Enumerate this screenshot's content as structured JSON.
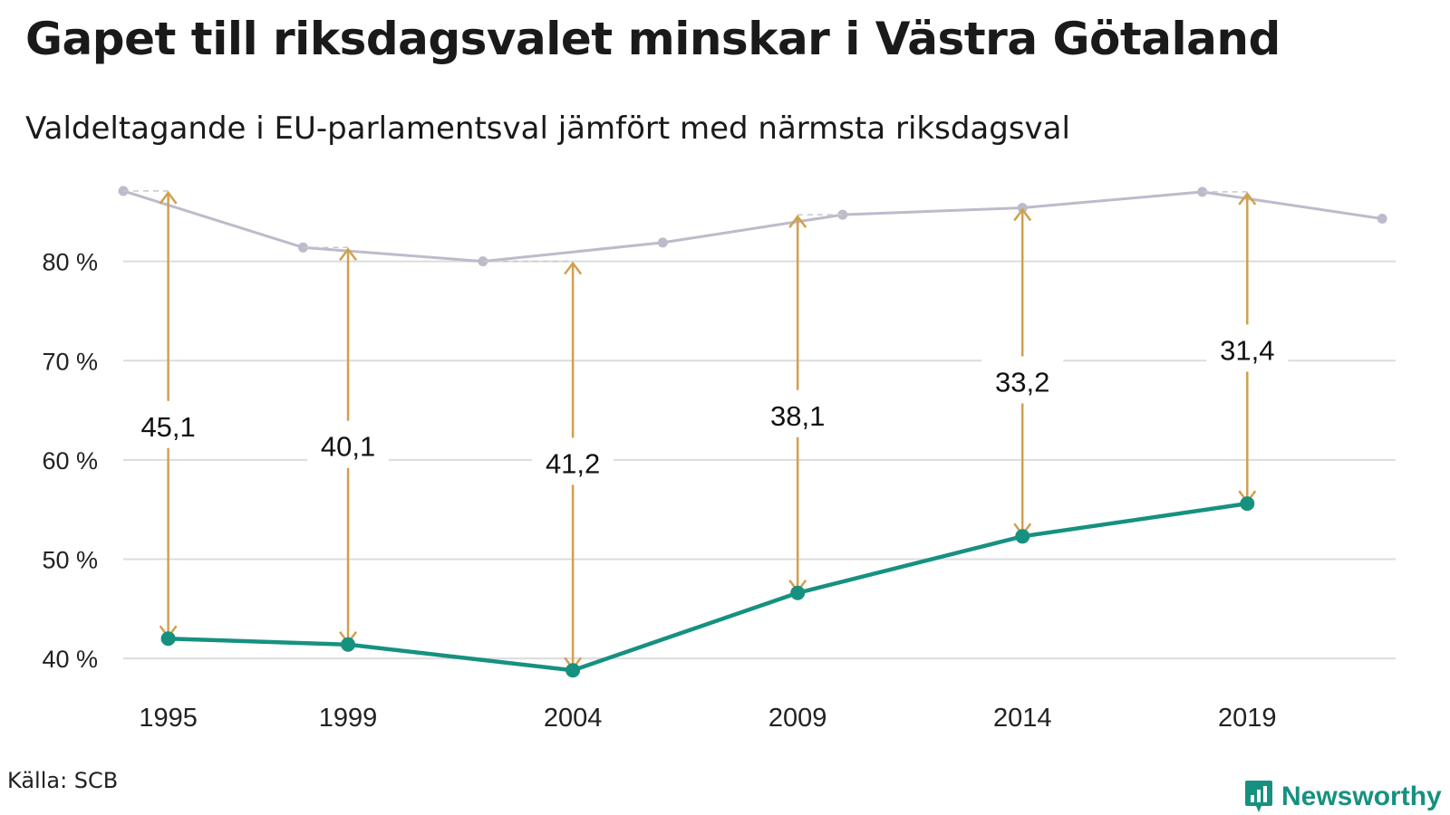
{
  "title": "Gapet till riksdagsvalet minskar i Västra Götaland",
  "subtitle": "Valdeltagande i EU-parlamentsval jämfört med närmsta riksdagsval",
  "source": "Källa: SCB",
  "logo_text": "Newsworthy",
  "colors": {
    "eu_line": "#169180",
    "riksdag_line": "#bdbbcb",
    "gap_arrow": "#d1a04e",
    "grid": "#dcdcdc"
  },
  "chart_data": {
    "type": "line",
    "title": "Gapet till riksdagsvalet minskar i Västra Götaland",
    "subtitle": "Valdeltagande i EU-parlamentsval jämfört med närmsta riksdagsval",
    "xlabel": "",
    "ylabel": "",
    "ylim": [
      37,
      89
    ],
    "yticks": [
      40,
      50,
      60,
      70,
      80
    ],
    "ytick_labels": [
      "40 %",
      "50 %",
      "60 %",
      "70 %",
      "80 %"
    ],
    "xticks": [
      1995,
      1999,
      2004,
      2009,
      2014,
      2019
    ],
    "xtick_labels": [
      "1995",
      "1999",
      "2004",
      "2009",
      "2014",
      "2019"
    ],
    "xlim": [
      1994,
      2022.3
    ],
    "grid": true,
    "series": [
      {
        "x": [
          1994,
          1998,
          2002,
          2006,
          2010,
          2014,
          2018,
          2022
        ],
        "y": [
          87.1,
          81.4,
          80.0,
          81.9,
          84.7,
          85.4,
          87.0,
          84.3
        ]
      },
      {
        "x": [
          1995,
          1999,
          2004,
          2009,
          2014,
          2019
        ],
        "y": [
          42.0,
          41.4,
          38.8,
          46.6,
          52.3,
          55.6
        ]
      }
    ],
    "gaps": [
      {
        "year": 1995,
        "label": "45,1",
        "from": 42.0,
        "to": 87.1,
        "label_at": 63.2
      },
      {
        "year": 1999,
        "label": "40,1",
        "from": 41.4,
        "to": 81.4,
        "label_at": 61.2
      },
      {
        "year": 2004,
        "label": "41,2",
        "from": 38.8,
        "to": 80.0,
        "label_at": 59.5
      },
      {
        "year": 2009,
        "label": "38,1",
        "from": 46.6,
        "to": 84.7,
        "label_at": 64.3
      },
      {
        "year": 2014,
        "label": "33,2",
        "from": 52.3,
        "to": 85.4,
        "label_at": 67.7
      },
      {
        "year": 2019,
        "label": "31,4",
        "from": 55.6,
        "to": 87.0,
        "label_at": 70.9
      }
    ]
  }
}
